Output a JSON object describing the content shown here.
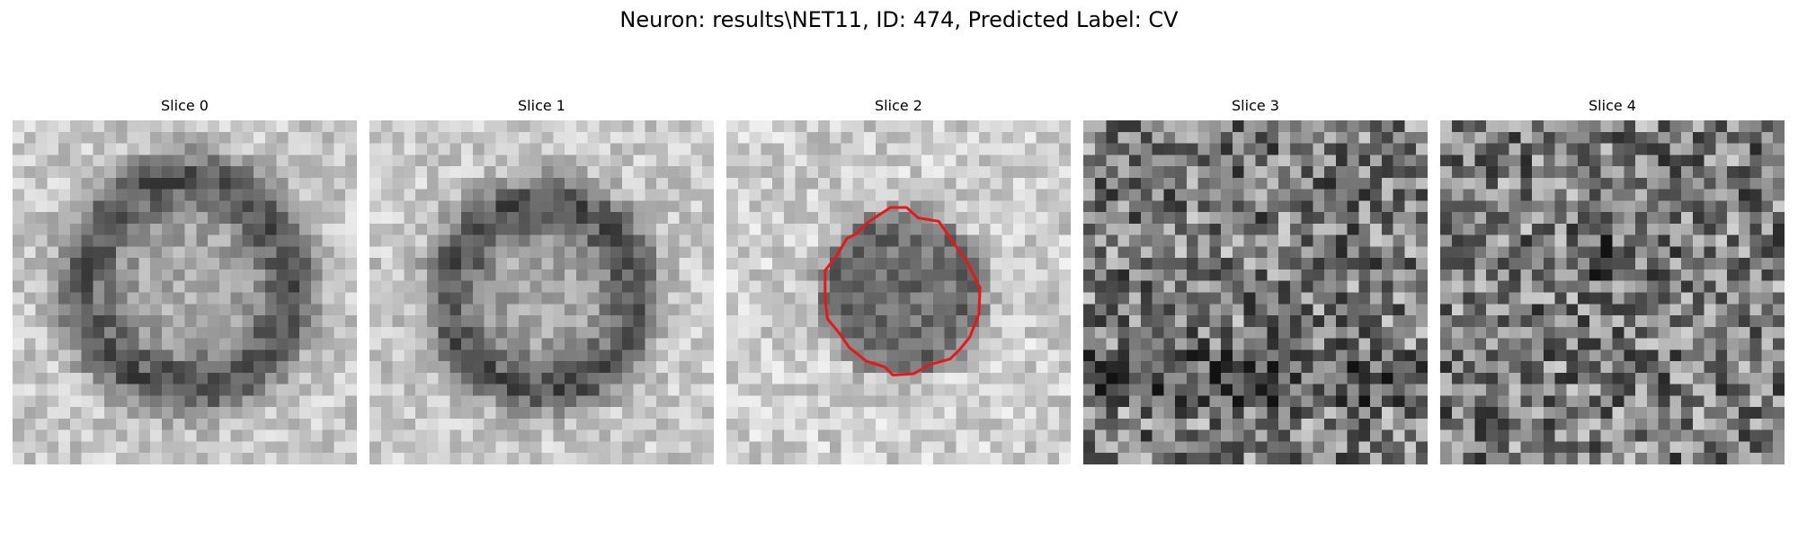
{
  "figure": {
    "title": "Neuron: results\\NET11, ID: 474, Predicted Label: CV"
  },
  "panels": [
    {
      "title": "Slice 0",
      "pattern": "ring",
      "show_contour": false
    },
    {
      "title": "Slice 1",
      "pattern": "ring",
      "show_contour": false
    },
    {
      "title": "Slice 2",
      "pattern": "dark-blob",
      "show_contour": true
    },
    {
      "title": "Slice 3",
      "pattern": "noise",
      "show_contour": false
    },
    {
      "title": "Slice 4",
      "pattern": "noise",
      "show_contour": false
    }
  ],
  "colormap": "gray",
  "contour_color": "#e31a1c"
}
